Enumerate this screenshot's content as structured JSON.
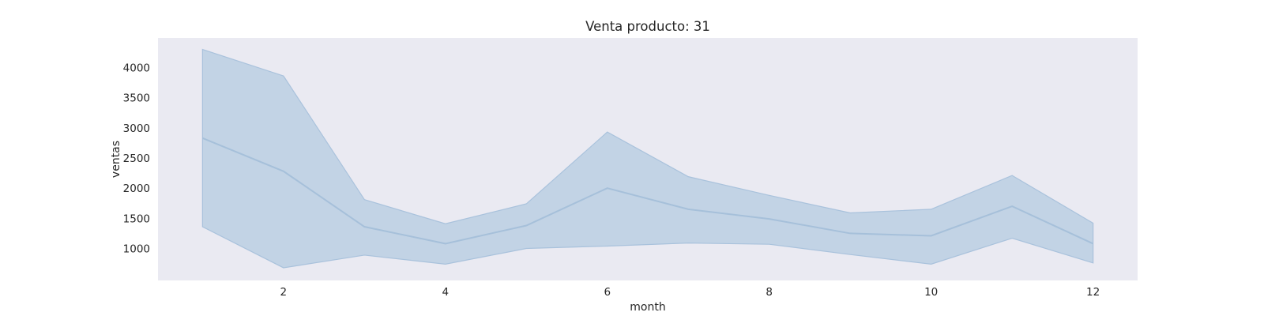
{
  "chart_data": {
    "type": "line",
    "title": "Venta producto: 31",
    "xlabel": "month",
    "ylabel": "ventas",
    "xlim": [
      0.45,
      12.55
    ],
    "ylim": [
      470,
      4490
    ],
    "xticks": [
      2,
      4,
      6,
      8,
      10,
      12
    ],
    "yticks": [
      1000,
      1500,
      2000,
      2500,
      3000,
      3500,
      4000
    ],
    "grid": false,
    "x": [
      1,
      2,
      3,
      4,
      5,
      6,
      7,
      8,
      9,
      10,
      11,
      12
    ],
    "series": [
      {
        "values": [
          2830,
          2280,
          1360,
          1080,
          1380,
          2000,
          1650,
          1490,
          1250,
          1210,
          1700,
          1080
        ],
        "band_lower": [
          1360,
          680,
          890,
          740,
          1000,
          1040,
          1090,
          1070,
          900,
          740,
          1170,
          760
        ],
        "band_upper": [
          4300,
          3860,
          1810,
          1410,
          1740,
          2930,
          2190,
          1880,
          1590,
          1650,
          2210,
          1420
        ]
      }
    ],
    "colors": {
      "background": "#eaeaf2",
      "line": "#a6c0da",
      "band": "#c2d3e5",
      "band_edge": "#a9c2dc"
    }
  }
}
